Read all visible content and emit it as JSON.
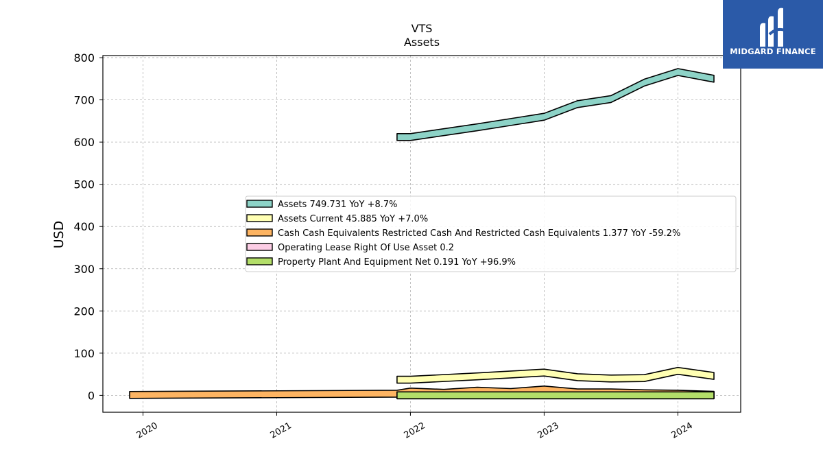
{
  "chart_data": {
    "type": "area",
    "title": "VTS",
    "subtitle": "Assets",
    "ylabel": "USD",
    "xlabel": "",
    "ylim": [
      -40,
      805
    ],
    "xlim": [
      2019.7,
      2024.47
    ],
    "x_ticks": [
      2020,
      2021,
      2022,
      2023,
      2024
    ],
    "x_tick_labels": [
      "2020",
      "2021",
      "2022",
      "2023",
      "2024"
    ],
    "y_ticks": [
      0,
      100,
      200,
      300,
      400,
      500,
      600,
      700,
      800
    ],
    "grid": true,
    "legend_position": "center-right",
    "series": [
      {
        "name": "Assets",
        "legend": "Assets  749.731 YoY +8.7%",
        "color": "#8dd3c7",
        "x": [
          2021.9,
          2022.0,
          2022.5,
          2023.0,
          2023.25,
          2023.5,
          2023.75,
          2024.0,
          2024.27
        ],
        "values": [
          612,
          612,
          635,
          660,
          690,
          702,
          741,
          766,
          750
        ]
      },
      {
        "name": "Assets Current",
        "legend": "Assets Current  45.885 YoY +7.0%",
        "color": "#ffffb3",
        "x": [
          2021.9,
          2022.0,
          2022.5,
          2023.0,
          2023.25,
          2023.5,
          2023.75,
          2024.0,
          2024.27
        ],
        "values": [
          37,
          37,
          45,
          54,
          43,
          40,
          41,
          58,
          46
        ]
      },
      {
        "name": "Cash Cash Equivalents Restricted Cash And Restricted Cash Equivalents",
        "legend": "Cash Cash Equivalents Restricted Cash And Restricted Cash Equivalents  1.377 YoY -59.2%",
        "color": "#fdb462",
        "x": [
          2019.9,
          2021.9,
          2022.0,
          2022.25,
          2022.5,
          2022.75,
          2023.0,
          2023.25,
          2023.5,
          2023.75,
          2024.0,
          2024.27
        ],
        "values": [
          1,
          4,
          9,
          6,
          11,
          8,
          14,
          7,
          7,
          5,
          4,
          1.4
        ]
      },
      {
        "name": "Operating Lease Right Of Use Asset",
        "legend": "Operating Lease Right Of Use Asset  0.2",
        "color": "#fccde5",
        "x": [
          2021.9,
          2024.27
        ],
        "values": [
          0.2,
          0.2
        ]
      },
      {
        "name": "Property Plant And Equipment Net",
        "legend": "Property Plant And Equipment Net  0.191 YoY +96.9%",
        "color": "#b3de69",
        "x": [
          2021.9,
          2024.27
        ],
        "values": [
          0.1,
          0.19
        ]
      }
    ]
  },
  "logo": {
    "text": "MIDGARD FINANCE"
  }
}
